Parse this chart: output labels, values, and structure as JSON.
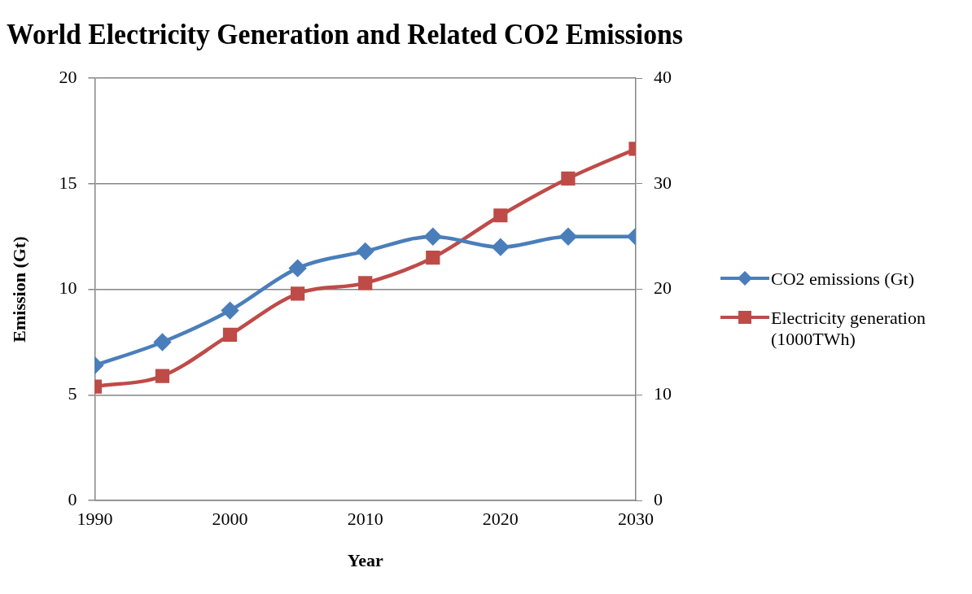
{
  "chart_data": {
    "type": "line",
    "title": "World Electricity Generation and Related CO2 Emissions",
    "xlabel": "Year",
    "ylabel": "Emission (Gt)",
    "x": [
      1990,
      1995,
      2000,
      2005,
      2010,
      2015,
      2020,
      2025,
      2030
    ],
    "series": [
      {
        "name": "CO2 emissions (Gt)",
        "color": "#4a7ebb",
        "marker": "diamond",
        "values": [
          6.4,
          7.5,
          9.0,
          11.0,
          11.8,
          12.5,
          12.0,
          12.5,
          12.5
        ]
      },
      {
        "name": "Electricity generation (1000TWh)",
        "color": "#be4b48",
        "marker": "square",
        "axis": "y2",
        "values": [
          10.8,
          11.8,
          15.7,
          19.6,
          20.6,
          23.0,
          27.0,
          30.5,
          33.3
        ]
      }
    ],
    "xlim": [
      1990,
      2030
    ],
    "xticks": [
      1990,
      2000,
      2010,
      2020,
      2030
    ],
    "ylim": [
      0,
      20
    ],
    "yticks": [
      0,
      5,
      10,
      15,
      20
    ],
    "y2lim": [
      0,
      40
    ],
    "y2ticks": [
      0,
      10,
      20,
      30,
      40
    ],
    "grid": "y",
    "legend": "right",
    "line_style": "solid"
  }
}
